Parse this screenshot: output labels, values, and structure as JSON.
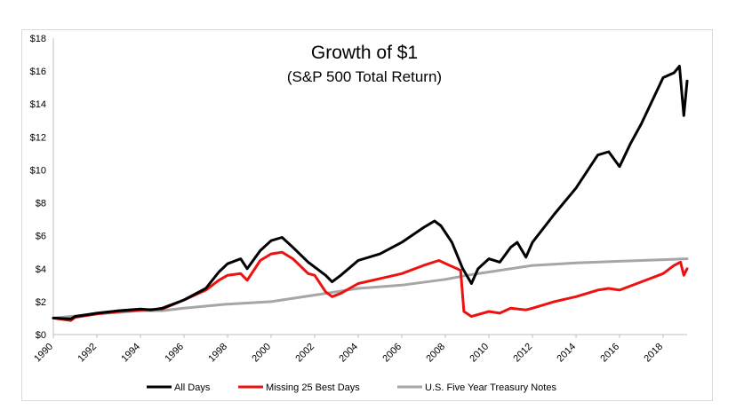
{
  "chart_data": {
    "type": "line",
    "title": "Growth of $1",
    "subtitle": "(S&P 500 Total Return)",
    "xlabel": "",
    "ylabel": "",
    "xlim": [
      1990,
      2019.1
    ],
    "ylim": [
      0,
      18
    ],
    "y_ticks": [
      0,
      2,
      4,
      6,
      8,
      10,
      12,
      14,
      16,
      18
    ],
    "y_tick_labels": [
      "$0",
      "$2",
      "$4",
      "$6",
      "$8",
      "$10",
      "$12",
      "$14",
      "$16",
      "$18"
    ],
    "x_ticks": [
      1990,
      1992,
      1994,
      1996,
      1998,
      2000,
      2002,
      2004,
      2006,
      2008,
      2010,
      2012,
      2014,
      2016,
      2018
    ],
    "x_tick_labels": [
      "1990",
      "1992",
      "1994",
      "1996",
      "1998",
      "2000",
      "2002",
      "2004",
      "2006",
      "2008",
      "2010",
      "2012",
      "2014",
      "2016",
      "2018"
    ],
    "grid": false,
    "legend_position": "bottom",
    "colors": {
      "all_days": "#000000",
      "missing_25": "#ee1111",
      "treasury": "#a6a6a6"
    },
    "series": [
      {
        "name": "All Days",
        "color": "#000000",
        "x": [
          1990.0,
          1990.8,
          1991.0,
          1992.0,
          1993.0,
          1994.0,
          1994.5,
          1995.0,
          1996.0,
          1997.0,
          1997.6,
          1998.0,
          1998.6,
          1998.9,
          1999.5,
          2000.0,
          2000.5,
          2001.0,
          2001.7,
          2002.0,
          2002.5,
          2002.8,
          2003.2,
          2004.0,
          2005.0,
          2006.0,
          2007.0,
          2007.5,
          2007.8,
          2008.3,
          2008.8,
          2009.2,
          2009.5,
          2010.0,
          2010.5,
          2011.0,
          2011.3,
          2011.7,
          2012.0,
          2013.0,
          2014.0,
          2015.0,
          2015.5,
          2016.0,
          2016.5,
          2017.0,
          2018.0,
          2018.5,
          2018.75,
          2018.95,
          2019.1
        ],
        "y": [
          1.0,
          0.95,
          1.1,
          1.3,
          1.45,
          1.55,
          1.5,
          1.6,
          2.1,
          2.8,
          3.8,
          4.3,
          4.6,
          4.0,
          5.1,
          5.7,
          5.9,
          5.3,
          4.4,
          4.1,
          3.6,
          3.2,
          3.6,
          4.5,
          4.9,
          5.6,
          6.5,
          6.9,
          6.6,
          5.6,
          4.0,
          3.1,
          4.0,
          4.6,
          4.4,
          5.3,
          5.6,
          4.7,
          5.6,
          7.3,
          8.9,
          10.9,
          11.1,
          10.2,
          11.6,
          12.8,
          15.6,
          15.9,
          16.3,
          13.3,
          15.4
        ]
      },
      {
        "name": "Missing 25 Best Days",
        "color": "#ee1111",
        "x": [
          1990.0,
          1990.8,
          1991.0,
          1992.0,
          1993.0,
          1994.0,
          1995.0,
          1996.0,
          1997.0,
          1997.6,
          1998.0,
          1998.6,
          1998.9,
          1999.5,
          2000.0,
          2000.5,
          2001.0,
          2001.7,
          2002.0,
          2002.5,
          2002.8,
          2003.2,
          2004.0,
          2005.0,
          2006.0,
          2007.0,
          2007.7,
          2008.2,
          2008.7,
          2008.85,
          2009.2,
          2010.0,
          2010.5,
          2011.0,
          2011.7,
          2012.0,
          2013.0,
          2014.0,
          2015.0,
          2015.5,
          2016.0,
          2017.0,
          2018.0,
          2018.5,
          2018.8,
          2018.95,
          2019.1
        ],
        "y": [
          1.0,
          0.85,
          1.05,
          1.25,
          1.4,
          1.5,
          1.55,
          2.1,
          2.7,
          3.3,
          3.6,
          3.7,
          3.3,
          4.5,
          4.9,
          5.0,
          4.6,
          3.7,
          3.6,
          2.6,
          2.3,
          2.5,
          3.1,
          3.4,
          3.7,
          4.2,
          4.5,
          4.2,
          3.9,
          1.4,
          1.1,
          1.4,
          1.3,
          1.6,
          1.5,
          1.6,
          2.0,
          2.3,
          2.7,
          2.8,
          2.7,
          3.2,
          3.7,
          4.2,
          4.4,
          3.6,
          4.0
        ]
      },
      {
        "name": "U.S. Five Year Treasury Notes",
        "color": "#a6a6a6",
        "x": [
          1990.0,
          1992.0,
          1994.0,
          1995.0,
          1996.0,
          1998.0,
          2000.0,
          2002.0,
          2004.0,
          2006.0,
          2008.0,
          2009.0,
          2010.0,
          2012.0,
          2014.0,
          2016.0,
          2018.0,
          2019.1
        ],
        "y": [
          1.0,
          1.25,
          1.45,
          1.45,
          1.6,
          1.85,
          2.0,
          2.4,
          2.8,
          3.0,
          3.35,
          3.6,
          3.8,
          4.2,
          4.35,
          4.45,
          4.55,
          4.6
        ]
      }
    ]
  }
}
